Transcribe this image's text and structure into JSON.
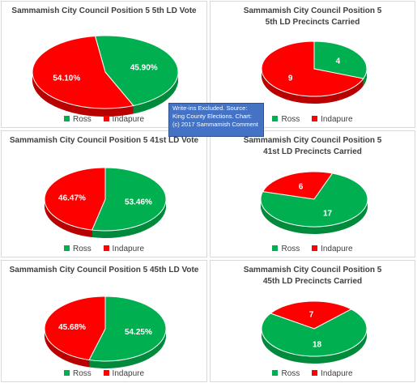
{
  "colors": {
    "ross": "#00b050",
    "indapure": "#ff0000",
    "ross_side": "#008a3c",
    "indapure_side": "#b80000"
  },
  "note": "Write-ins Excluded. Source: King County Elections. Chart: (c) 2017 Sammamish Comment",
  "chart_data": [
    {
      "type": "pie",
      "title": "Sammamish City Council Position 5 5th LD Vote",
      "categories": [
        "Ross",
        "Indapure"
      ],
      "values": [
        45.9,
        54.1
      ],
      "data_labels": [
        "45.90%",
        "54.10%"
      ],
      "legend": [
        "Ross",
        "Indapure"
      ],
      "legend_placement": "bottom"
    },
    {
      "type": "pie",
      "title": "Sammamish City Council Position 5\n5th LD Precincts Carried",
      "categories": [
        "Ross",
        "Indapure"
      ],
      "values": [
        4,
        9
      ],
      "data_labels": [
        "4",
        "9"
      ],
      "legend": [
        "Ross",
        "Indapure"
      ],
      "legend_placement": "bottom"
    },
    {
      "type": "pie",
      "title": "Sammamish City Council Position 5 41st LD Vote",
      "categories": [
        "Ross",
        "Indapure"
      ],
      "values": [
        53.46,
        46.47
      ],
      "data_labels": [
        "53.46%",
        "46.47%"
      ],
      "legend": [
        "Ross",
        "Indapure"
      ],
      "legend_placement": "bottom"
    },
    {
      "type": "pie",
      "title": "Sammamish City Council Position 5\n41st LD Precincts Carried",
      "categories": [
        "Ross",
        "Indapure"
      ],
      "values": [
        17,
        6
      ],
      "data_labels": [
        "17",
        "6"
      ],
      "legend": [
        "Ross",
        "Indapure"
      ],
      "legend_placement": "bottom"
    },
    {
      "type": "pie",
      "title": "Sammamish City Council Position 5 45th LD Vote",
      "categories": [
        "Ross",
        "Indapure"
      ],
      "values": [
        54.25,
        45.68
      ],
      "data_labels": [
        "54.25%",
        "45.68%"
      ],
      "legend": [
        "Ross",
        "Indapure"
      ],
      "legend_placement": "bottom"
    },
    {
      "type": "pie",
      "title": "Sammamish City Council Position 5\n45th LD Precincts Carried",
      "categories": [
        "Ross",
        "Indapure"
      ],
      "values": [
        18,
        7
      ],
      "data_labels": [
        "18",
        "7"
      ],
      "legend": [
        "Ross",
        "Indapure"
      ],
      "legend_placement": "bottom"
    }
  ]
}
